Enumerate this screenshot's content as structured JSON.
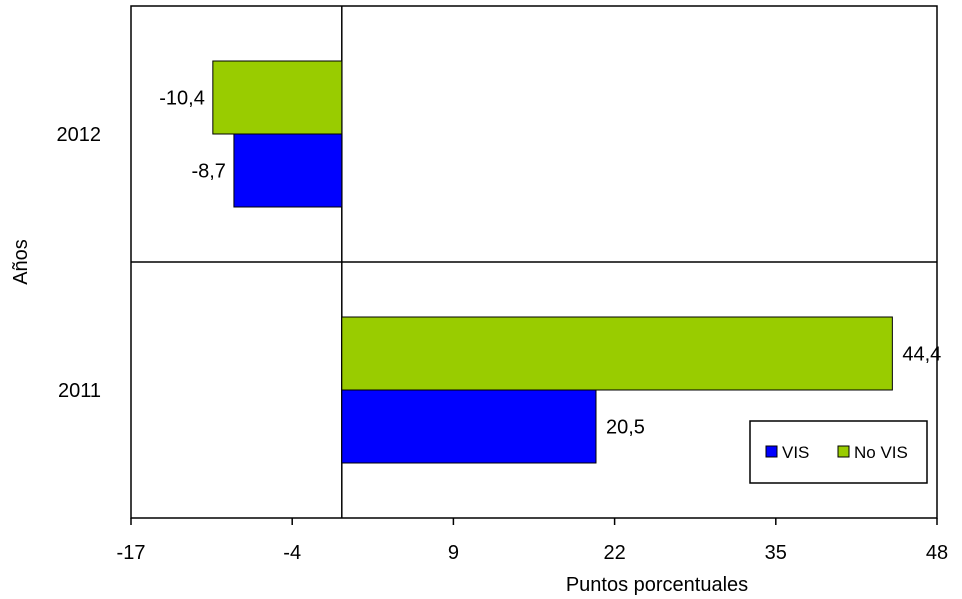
{
  "chart_data": {
    "type": "bar",
    "orientation": "horizontal",
    "categories": [
      "2012",
      "2011"
    ],
    "series": [
      {
        "name": "VIS",
        "values": [
          -8.7,
          20.5
        ],
        "labels": [
          "-8,7",
          "20,5"
        ],
        "color": "#0000ff"
      },
      {
        "name": "No VIS",
        "values": [
          -10.4,
          44.4
        ],
        "labels": [
          "-10,4",
          "44,4"
        ],
        "color": "#99cc00"
      }
    ],
    "xlabel": "Puntos porcentuales",
    "ylabel": "Años",
    "xlim": [
      -17,
      48
    ],
    "xticks": [
      -17,
      -4,
      9,
      22,
      35,
      48
    ],
    "xtick_labels": [
      "-17",
      "-4",
      "9",
      "22",
      "35",
      "48"
    ],
    "legend_position": "bottom-right",
    "grid": false
  }
}
